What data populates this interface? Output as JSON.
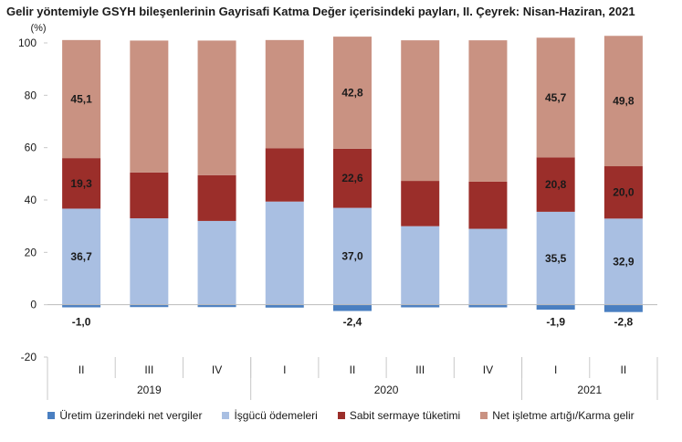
{
  "chart_data": {
    "type": "bar",
    "stacked": true,
    "title": "Gelir yöntemiyle GSYH bileşenlerinin Gayrisafi Katma Değer içerisindeki payları, II. Çeyrek: Nisan-Haziran, 2021",
    "unit_label": "(%)",
    "categories": [
      "II",
      "III",
      "IV",
      "I",
      "II",
      "III",
      "IV",
      "I",
      "II"
    ],
    "year_groups": [
      {
        "label": "2019",
        "count": 3
      },
      {
        "label": "2020",
        "count": 4
      },
      {
        "label": "2021",
        "count": 2
      }
    ],
    "ylim": [
      -20,
      100
    ],
    "yticks": [
      -20,
      0,
      20,
      40,
      60,
      80,
      100
    ],
    "grid": false,
    "legend_position": "bottom",
    "series": [
      {
        "name": "Üretim üzerindeki net vergiler",
        "color": "#4a7fc1",
        "values": [
          -1.0,
          -0.9,
          -0.9,
          -1.1,
          -2.4,
          -1.0,
          -1.0,
          -1.9,
          -2.8
        ],
        "labels": [
          "-1,0",
          "",
          "",
          "",
          "-2,4",
          "",
          "",
          "-1,9",
          "-2,8"
        ]
      },
      {
        "name": "İşgücü ödemeleri",
        "color": "#a9bfe2",
        "values": [
          36.7,
          33.0,
          32.0,
          39.4,
          37.0,
          30.0,
          29.0,
          35.5,
          32.9
        ],
        "labels": [
          "36,7",
          "",
          "",
          "",
          "37,0",
          "",
          "",
          "35,5",
          "32,9"
        ]
      },
      {
        "name": "Sabit sermaye tüketimi",
        "color": "#9b2e2a",
        "values": [
          19.3,
          17.5,
          17.5,
          20.4,
          22.6,
          17.3,
          18.0,
          20.8,
          20.0
        ],
        "labels": [
          "19,3",
          "",
          "",
          "",
          "22,6",
          "",
          "",
          "20,8",
          "20,0"
        ]
      },
      {
        "name": "Net işletme artığı/Karma gelir",
        "color": "#c99282",
        "values": [
          45.1,
          50.4,
          51.4,
          41.3,
          42.8,
          53.7,
          54.0,
          45.7,
          49.8
        ],
        "labels": [
          "45,1",
          "",
          "",
          "",
          "42,8",
          "",
          "",
          "45,7",
          "49,8"
        ]
      }
    ]
  }
}
